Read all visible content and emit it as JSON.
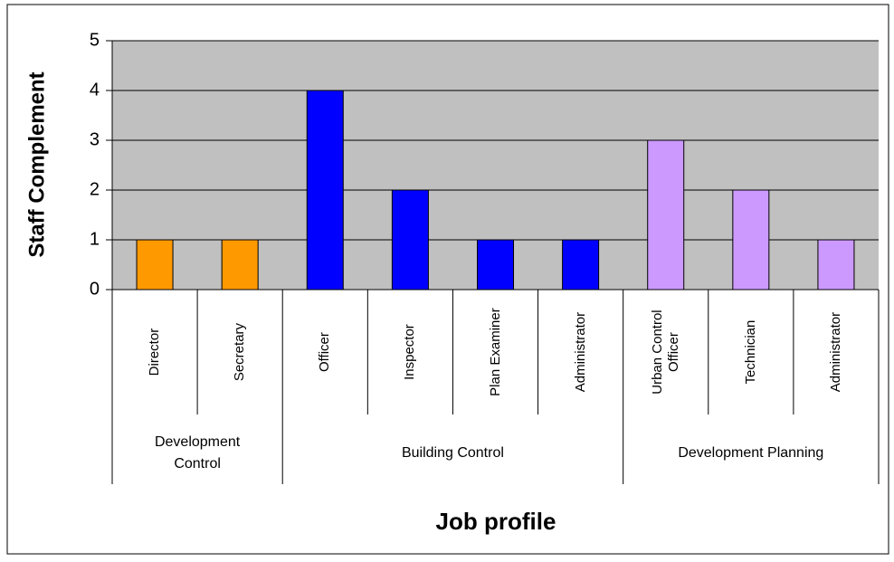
{
  "chart_data": {
    "type": "bar",
    "ylabel": "Staff Complement",
    "xlabel": "Job profile",
    "ylim": [
      0,
      5
    ],
    "yticks": [
      0,
      1,
      2,
      3,
      4,
      5
    ],
    "grid": true,
    "groups": [
      {
        "name": "Development Control",
        "color": "#ff9900",
        "categories": [
          "Director",
          "Secretary"
        ],
        "values": [
          1,
          1
        ]
      },
      {
        "name": "Building Control",
        "color": "#0000ff",
        "categories": [
          "Officer",
          "Inspector",
          "Plan Examiner",
          "Administrator"
        ],
        "values": [
          4,
          2,
          1,
          1
        ]
      },
      {
        "name": "Development Planning",
        "color": "#cc99ff",
        "categories": [
          "Urban Control Officer",
          "Technician",
          "Administrator"
        ],
        "values": [
          3,
          2,
          1
        ]
      }
    ]
  }
}
